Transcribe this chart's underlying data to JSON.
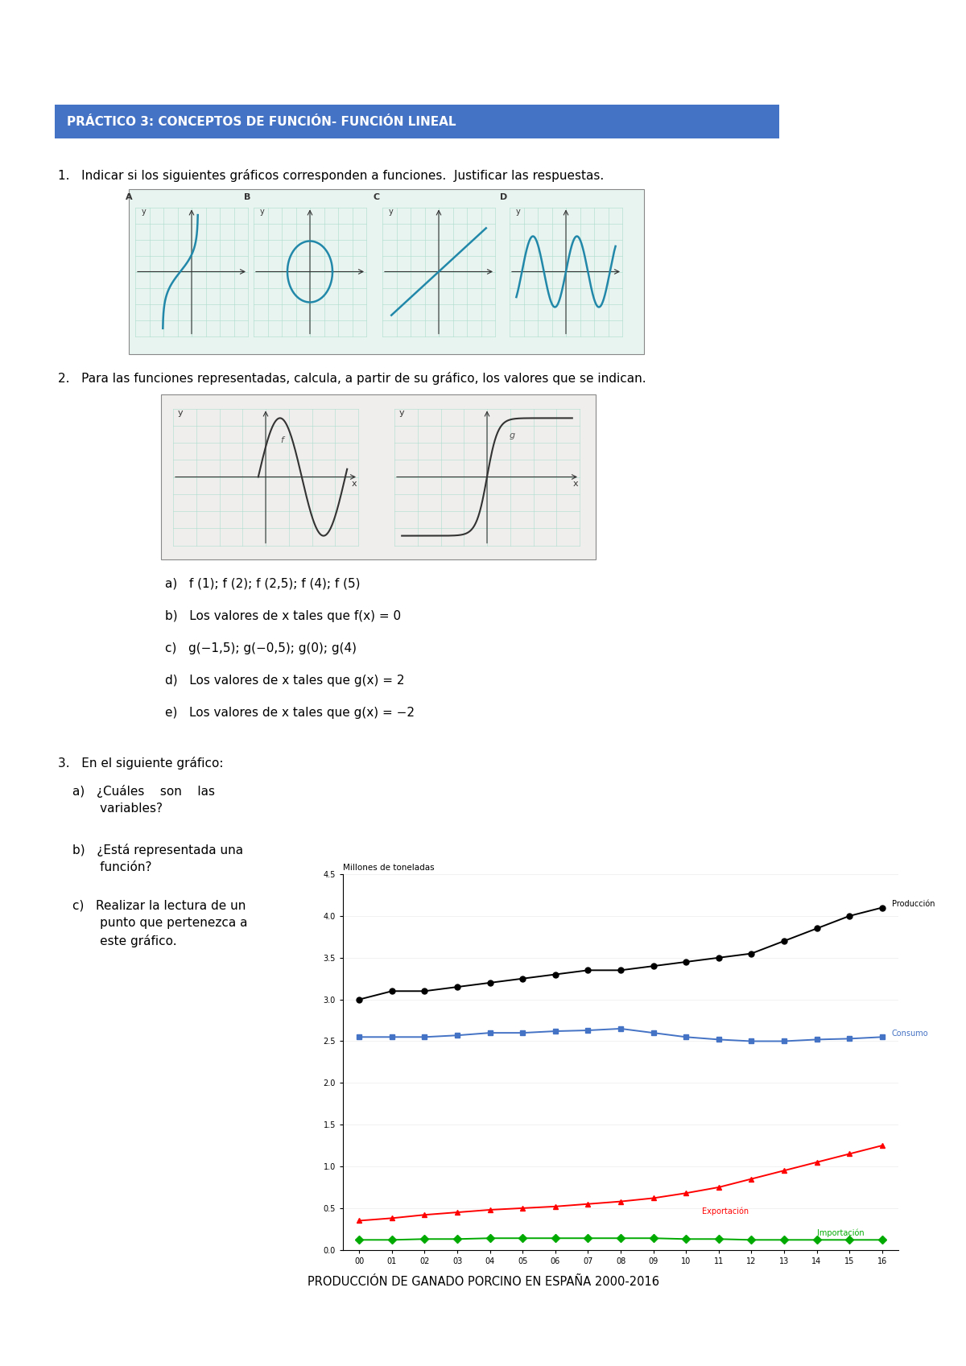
{
  "title": "PRÁCTICO 3: CONCEPTOS DE FUNCIÓN- FUNCIÓN LINEAL",
  "title_bg_color": "#4472C4",
  "title_text_color": "#FFFFFF",
  "page_bg_color": "#FFFFFF",
  "curve_color": "#2288AA",
  "q1_text": "1.   Indicar si los siguientes gráficos corresponden a funciones.  Justificar las respuestas.",
  "q2_text": "2.   Para las funciones representadas, calcula, a partir de su gráfico, los valores que se indican.",
  "q2a_text": "a)   f (1); f (2); f (2,5); f (4); f (5)",
  "q2b_text": "b)   Los valores de x tales que f(x) = 0",
  "q2c_text": "c)   g(−1,5); g(−0,5); g(0); g(4)",
  "q2d_text": "d)   Los valores de x tales que g(x) = 2",
  "q2e_text": "e)   Los valores de x tales que g(x) = −2",
  "q3_text": "3.   En el siguiente gráfico:",
  "q3a_line1": "a)   ¿Cuáles    son    las",
  "q3a_line2": "       variables?",
  "q3b_line1": "b)   ¿Está representada una",
  "q3b_line2": "       función?",
  "q3c_line1": "c)   Realizar la lectura de un",
  "q3c_line2": "       punto que pertenezca a",
  "q3c_line3": "       este gráfico.",
  "chart_title": "Millones de toneladas",
  "chart_xlabel_title": "PRODUCCIÓN DE GANADO PORCINO EN ESPAÑA 2000-2016",
  "prod_label": "Producción",
  "cons_label": "Consumo",
  "exp_label": "Exportación",
  "imp_label": "Importación",
  "prod_color": "#000000",
  "cons_color": "#4472C4",
  "exp_color": "#FF0000",
  "imp_color": "#00AA00",
  "years": [
    "00",
    "01",
    "02",
    "03",
    "04",
    "05",
    "06",
    "07",
    "08",
    "09",
    "10",
    "11",
    "12",
    "13",
    "14",
    "15",
    "16"
  ],
  "prod_data": [
    3.0,
    3.1,
    3.1,
    3.15,
    3.2,
    3.25,
    3.3,
    3.35,
    3.35,
    3.4,
    3.45,
    3.5,
    3.55,
    3.7,
    3.85,
    4.0,
    4.1
  ],
  "cons_data": [
    2.55,
    2.55,
    2.55,
    2.57,
    2.6,
    2.6,
    2.62,
    2.63,
    2.65,
    2.6,
    2.55,
    2.52,
    2.5,
    2.5,
    2.52,
    2.53,
    2.55
  ],
  "exp_data": [
    0.35,
    0.38,
    0.42,
    0.45,
    0.48,
    0.5,
    0.52,
    0.55,
    0.58,
    0.62,
    0.68,
    0.75,
    0.85,
    0.95,
    1.05,
    1.15,
    1.25
  ],
  "imp_data": [
    0.12,
    0.12,
    0.13,
    0.13,
    0.14,
    0.14,
    0.14,
    0.14,
    0.14,
    0.14,
    0.13,
    0.13,
    0.12,
    0.12,
    0.12,
    0.12,
    0.12
  ]
}
